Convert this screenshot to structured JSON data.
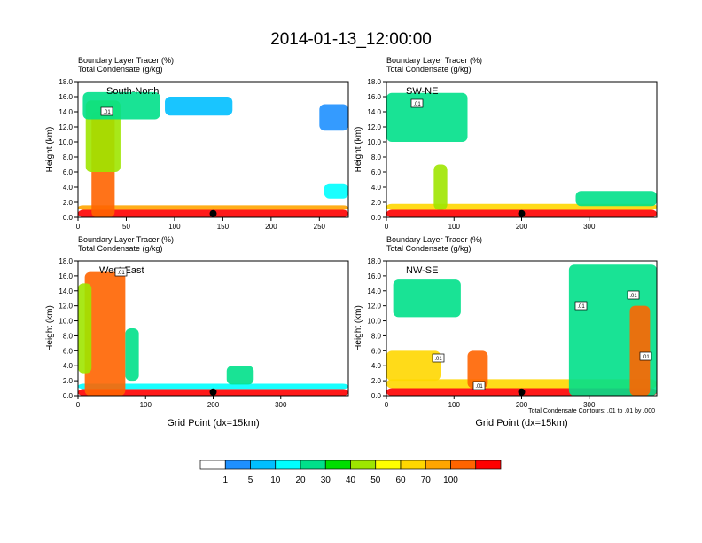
{
  "page": {
    "title": "2014-01-13_12:00:00"
  },
  "colorbar": {
    "labels": [
      "1",
      "5",
      "10",
      "20",
      "30",
      "40",
      "50",
      "60",
      "70",
      "100"
    ],
    "colors": [
      "#ffffff",
      "#1e90ff",
      "#00bfff",
      "#00ffff",
      "#00e08a",
      "#00dd00",
      "#9ee600",
      "#ffff00",
      "#ffd700",
      "#ffa500",
      "#ff6400",
      "#ff0000"
    ]
  },
  "chart_data": [
    {
      "type": "heatmap",
      "panel": "top-left",
      "left_title_1": "Boundary Layer Tracer   (%)",
      "left_title_2": "Total Condensate   (g/kg)",
      "label": "South-North",
      "ylabel": "Height (km)",
      "xlabel": "",
      "xlim": [
        0,
        280
      ],
      "ylim": [
        0,
        18
      ],
      "xticks": [
        "0",
        "50",
        "100",
        "150",
        "200",
        "250"
      ],
      "yticks": [
        "0.0",
        "2.0",
        "4.0",
        "6.0",
        "8.0",
        "10.0",
        "12.0",
        "14.0",
        "16.0",
        "18.0"
      ],
      "marker_x": 140,
      "contour_labels": [
        ".01"
      ],
      "blobs": [
        {
          "x": 0,
          "w": 280,
          "y0": 0,
          "y1": 1.0,
          "c": "#ff0000"
        },
        {
          "x": 0,
          "w": 280,
          "y0": 1.0,
          "y1": 1.6,
          "c": "#ffa500"
        },
        {
          "x": 14,
          "w": 24,
          "y0": 0,
          "y1": 14,
          "c": "#ff6400"
        },
        {
          "x": 8,
          "w": 36,
          "y0": 6,
          "y1": 15.5,
          "c": "#9ee600"
        },
        {
          "x": 5,
          "w": 80,
          "y0": 13,
          "y1": 16.6,
          "c": "#00e08a"
        },
        {
          "x": 90,
          "w": 70,
          "y0": 13.5,
          "y1": 16,
          "c": "#00bfff"
        },
        {
          "x": 250,
          "w": 30,
          "y0": 11.5,
          "y1": 15,
          "c": "#1e90ff"
        },
        {
          "x": 255,
          "w": 25,
          "y0": 2.5,
          "y1": 4.5,
          "c": "#00ffff"
        }
      ]
    },
    {
      "type": "heatmap",
      "panel": "top-right",
      "left_title_1": "Boundary Layer Tracer   (%)",
      "left_title_2": "Total Condensate   (g/kg)",
      "label": "SW-NE",
      "ylabel": "Height (km)",
      "xlabel": "",
      "xlim": [
        0,
        400
      ],
      "ylim": [
        0,
        18
      ],
      "xticks": [
        "0",
        "100",
        "200",
        "300"
      ],
      "yticks": [
        "0.0",
        "2.0",
        "4.0",
        "6.0",
        "8.0",
        "10.0",
        "12.0",
        "14.0",
        "16.0",
        "18.0"
      ],
      "marker_x": 200,
      "contour_labels": [
        ".01"
      ],
      "blobs": [
        {
          "x": 0,
          "w": 400,
          "y0": 0,
          "y1": 1.0,
          "c": "#ff0000"
        },
        {
          "x": 0,
          "w": 400,
          "y0": 1.0,
          "y1": 1.8,
          "c": "#ffd700"
        },
        {
          "x": 0,
          "w": 120,
          "y0": 10,
          "y1": 16.5,
          "c": "#00e08a"
        },
        {
          "x": 70,
          "w": 20,
          "y0": 1,
          "y1": 7,
          "c": "#9ee600"
        },
        {
          "x": 280,
          "w": 120,
          "y0": 1.5,
          "y1": 3.5,
          "c": "#00e08a"
        }
      ]
    },
    {
      "type": "heatmap",
      "panel": "bottom-left",
      "left_title_1": "Boundary Layer Tracer   (%)",
      "left_title_2": "Total Condensate   (g/kg)",
      "label": "West-East",
      "ylabel": "Height (km)",
      "xlabel": "Grid Point (dx=15km)",
      "xlim": [
        0,
        400
      ],
      "ylim": [
        0,
        18
      ],
      "xticks": [
        "0",
        "100",
        "200",
        "300"
      ],
      "yticks": [
        "0.0",
        "2.0",
        "4.0",
        "6.0",
        "8.0",
        "10.0",
        "12.0",
        "14.0",
        "16.0",
        "18.0"
      ],
      "marker_x": 200,
      "contour_labels": [
        ".01"
      ],
      "blobs": [
        {
          "x": 0,
          "w": 400,
          "y0": 0,
          "y1": 0.9,
          "c": "#ff0000"
        },
        {
          "x": 0,
          "w": 400,
          "y0": 0.9,
          "y1": 1.6,
          "c": "#00ffff"
        },
        {
          "x": 10,
          "w": 60,
          "y0": 0,
          "y1": 16.5,
          "c": "#ff6400"
        },
        {
          "x": 0,
          "w": 20,
          "y0": 3,
          "y1": 15,
          "c": "#9ee600"
        },
        {
          "x": 70,
          "w": 20,
          "y0": 2,
          "y1": 9,
          "c": "#00e08a"
        },
        {
          "x": 220,
          "w": 40,
          "y0": 1.5,
          "y1": 4,
          "c": "#00e08a"
        }
      ]
    },
    {
      "type": "heatmap",
      "panel": "bottom-right",
      "left_title_1": "Boundary Layer Tracer   (%)",
      "left_title_2": "Total Condensate   (g/kg)",
      "label": "NW-SE",
      "ylabel": "Height (km)",
      "xlabel": "Grid Point (dx=15km)",
      "xlim": [
        0,
        400
      ],
      "ylim": [
        0,
        18
      ],
      "xticks": [
        "0",
        "100",
        "200",
        "300"
      ],
      "yticks": [
        "0.0",
        "2.0",
        "4.0",
        "6.0",
        "8.0",
        "10.0",
        "12.0",
        "14.0",
        "16.0",
        "18.0"
      ],
      "marker_x": 200,
      "contour_labels": [
        ".01",
        ".01",
        ".01",
        ".01",
        ".01"
      ],
      "footnote": "Total Condensate Contours: .01 to .01 by .000",
      "blobs": [
        {
          "x": 0,
          "w": 400,
          "y0": 0,
          "y1": 1.0,
          "c": "#ff0000"
        },
        {
          "x": 0,
          "w": 400,
          "y0": 1.0,
          "y1": 2.2,
          "c": "#ffd700"
        },
        {
          "x": 10,
          "w": 100,
          "y0": 10.5,
          "y1": 15.5,
          "c": "#00e08a"
        },
        {
          "x": 0,
          "w": 80,
          "y0": 2,
          "y1": 6,
          "c": "#ffd700"
        },
        {
          "x": 270,
          "w": 130,
          "y0": 0,
          "y1": 17.5,
          "c": "#00e08a"
        },
        {
          "x": 360,
          "w": 30,
          "y0": 0,
          "y1": 12,
          "c": "#ff6400"
        },
        {
          "x": 120,
          "w": 30,
          "y0": 1,
          "y1": 6,
          "c": "#ff6400"
        }
      ]
    }
  ]
}
